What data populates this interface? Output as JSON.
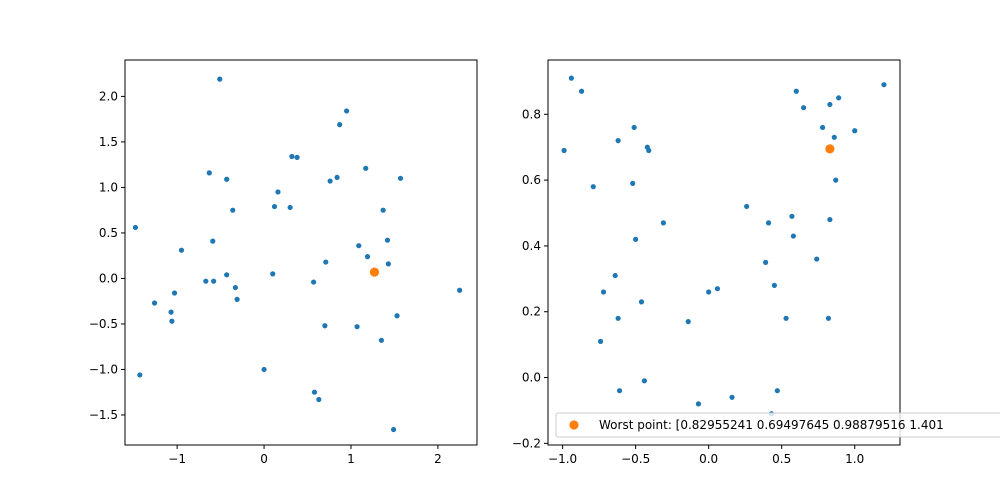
{
  "chart_data": [
    {
      "type": "scatter",
      "title": "",
      "xlabel": "",
      "ylabel": "",
      "xlim": [
        -1.6,
        2.45
      ],
      "ylim": [
        -1.83,
        2.4
      ],
      "xticks": [
        -1,
        0,
        1,
        2
      ],
      "yticks": [
        -1.5,
        -1.0,
        -0.5,
        0.0,
        0.5,
        1.0,
        1.5,
        2.0
      ],
      "xtick_labels": [
        "−1",
        "0",
        "1",
        "2"
      ],
      "ytick_labels": [
        "−1.5",
        "−1.0",
        "−0.5",
        "0.0",
        "0.5",
        "1.0",
        "1.5",
        "2.0"
      ],
      "grid": false,
      "series": [
        {
          "color": "#1f77b4",
          "points": [
            [
              -1.48,
              0.56
            ],
            [
              -1.43,
              -1.06
            ],
            [
              -1.26,
              -0.27
            ],
            [
              -1.07,
              -0.37
            ],
            [
              -1.06,
              -0.47
            ],
            [
              -1.03,
              -0.16
            ],
            [
              -0.95,
              0.31
            ],
            [
              -0.67,
              -0.03
            ],
            [
              -0.63,
              1.16
            ],
            [
              -0.59,
              0.41
            ],
            [
              -0.58,
              -0.03
            ],
            [
              -0.51,
              2.19
            ],
            [
              -0.43,
              1.09
            ],
            [
              -0.43,
              0.04
            ],
            [
              -0.36,
              0.75
            ],
            [
              -0.33,
              -0.1
            ],
            [
              -0.31,
              -0.23
            ],
            [
              0.0,
              -1.0
            ],
            [
              0.1,
              0.05
            ],
            [
              0.12,
              0.79
            ],
            [
              0.16,
              0.95
            ],
            [
              0.3,
              0.78
            ],
            [
              0.32,
              1.34
            ],
            [
              0.38,
              1.33
            ],
            [
              0.57,
              -0.04
            ],
            [
              0.58,
              -1.25
            ],
            [
              0.63,
              -1.33
            ],
            [
              0.7,
              -0.52
            ],
            [
              0.71,
              0.18
            ],
            [
              0.76,
              1.07
            ],
            [
              0.84,
              1.11
            ],
            [
              0.87,
              1.69
            ],
            [
              0.95,
              1.84
            ],
            [
              1.07,
              -0.53
            ],
            [
              1.09,
              0.36
            ],
            [
              1.17,
              1.21
            ],
            [
              1.19,
              0.24
            ],
            [
              1.35,
              -0.68
            ],
            [
              1.37,
              0.75
            ],
            [
              1.42,
              0.42
            ],
            [
              1.43,
              0.16
            ],
            [
              1.49,
              -1.66
            ],
            [
              1.53,
              -0.41
            ],
            [
              1.57,
              1.1
            ],
            [
              2.25,
              -0.13
            ]
          ]
        },
        {
          "color": "#ff7f0e",
          "points": [
            [
              1.27,
              0.07
            ]
          ]
        }
      ]
    },
    {
      "type": "scatter",
      "title": "",
      "xlabel": "",
      "ylabel": "",
      "xlim": [
        -1.1,
        1.31
      ],
      "ylim": [
        -0.205,
        0.965
      ],
      "xticks": [
        -1.0,
        -0.5,
        0.0,
        0.5,
        1.0
      ],
      "yticks": [
        -0.2,
        0.0,
        0.2,
        0.4,
        0.6,
        0.8
      ],
      "xtick_labels": [
        "−1.0",
        "−0.5",
        "0.0",
        "0.5",
        "1.0"
      ],
      "ytick_labels": [
        "−0.2",
        "0.0",
        "0.2",
        "0.4",
        "0.6",
        "0.8"
      ],
      "grid": false,
      "legend": {
        "placement": "lower-right",
        "entries": [
          {
            "label": "Worst point: [0.82955241 0.69497645 0.98879516 1.401",
            "color": "#ff7f0e"
          }
        ]
      },
      "series": [
        {
          "color": "#1f77b4",
          "points": [
            [
              -0.99,
              0.69
            ],
            [
              -0.94,
              0.91
            ],
            [
              -0.87,
              0.87
            ],
            [
              -0.79,
              0.58
            ],
            [
              -0.74,
              0.11
            ],
            [
              -0.72,
              0.26
            ],
            [
              -0.64,
              0.31
            ],
            [
              -0.62,
              0.72
            ],
            [
              -0.62,
              0.18
            ],
            [
              -0.61,
              -0.04
            ],
            [
              -0.52,
              0.59
            ],
            [
              -0.51,
              0.76
            ],
            [
              -0.5,
              0.42
            ],
            [
              -0.46,
              0.23
            ],
            [
              -0.44,
              -0.01
            ],
            [
              -0.42,
              0.7
            ],
            [
              -0.41,
              0.69
            ],
            [
              -0.31,
              0.47
            ],
            [
              -0.14,
              0.17
            ],
            [
              -0.07,
              -0.08
            ],
            [
              0.0,
              0.26
            ],
            [
              0.06,
              0.27
            ],
            [
              0.16,
              -0.06
            ],
            [
              0.26,
              0.52
            ],
            [
              0.39,
              0.35
            ],
            [
              0.41,
              0.47
            ],
            [
              0.43,
              -0.11
            ],
            [
              0.45,
              0.28
            ],
            [
              0.47,
              -0.04
            ],
            [
              0.53,
              0.18
            ],
            [
              0.57,
              0.49
            ],
            [
              0.58,
              0.43
            ],
            [
              0.6,
              0.87
            ],
            [
              0.65,
              0.82
            ],
            [
              0.74,
              0.36
            ],
            [
              0.78,
              0.76
            ],
            [
              0.82,
              0.18
            ],
            [
              0.83,
              0.48
            ],
            [
              0.83,
              0.83
            ],
            [
              0.86,
              0.73
            ],
            [
              0.87,
              0.6
            ],
            [
              0.89,
              0.85
            ],
            [
              1.0,
              0.75
            ],
            [
              1.2,
              0.89
            ]
          ]
        },
        {
          "color": "#ff7f0e",
          "points": [
            [
              0.83,
              0.695
            ]
          ]
        }
      ]
    }
  ]
}
